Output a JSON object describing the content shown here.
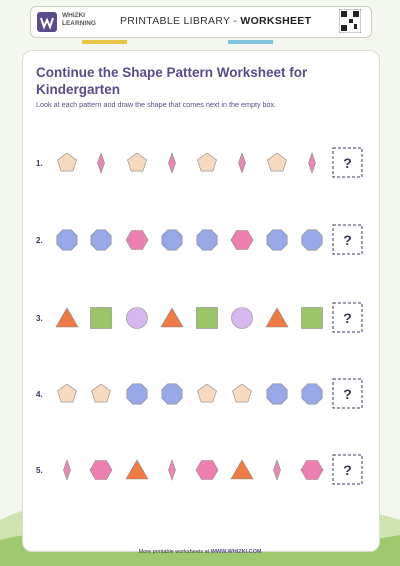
{
  "header": {
    "brand": "WHIZKI",
    "brand_sub": "LEARNING",
    "library": "PRINTABLE LIBRARY -",
    "worksheet": "WORKSHEET"
  },
  "title": "Continue the Shape Pattern Worksheet for Kindergarten",
  "instructions": "Look at each pattern and draw the shape that comes next in the empty box.",
  "rows": [
    {
      "number": "1.",
      "answer": "?"
    },
    {
      "number": "2.",
      "answer": "?"
    },
    {
      "number": "3.",
      "answer": "?"
    },
    {
      "number": "4.",
      "answer": "?"
    },
    {
      "number": "5.",
      "answer": "?"
    }
  ],
  "footer": {
    "text": "More printable worksheets at",
    "link": "WWW.WHIZKI.COM"
  }
}
